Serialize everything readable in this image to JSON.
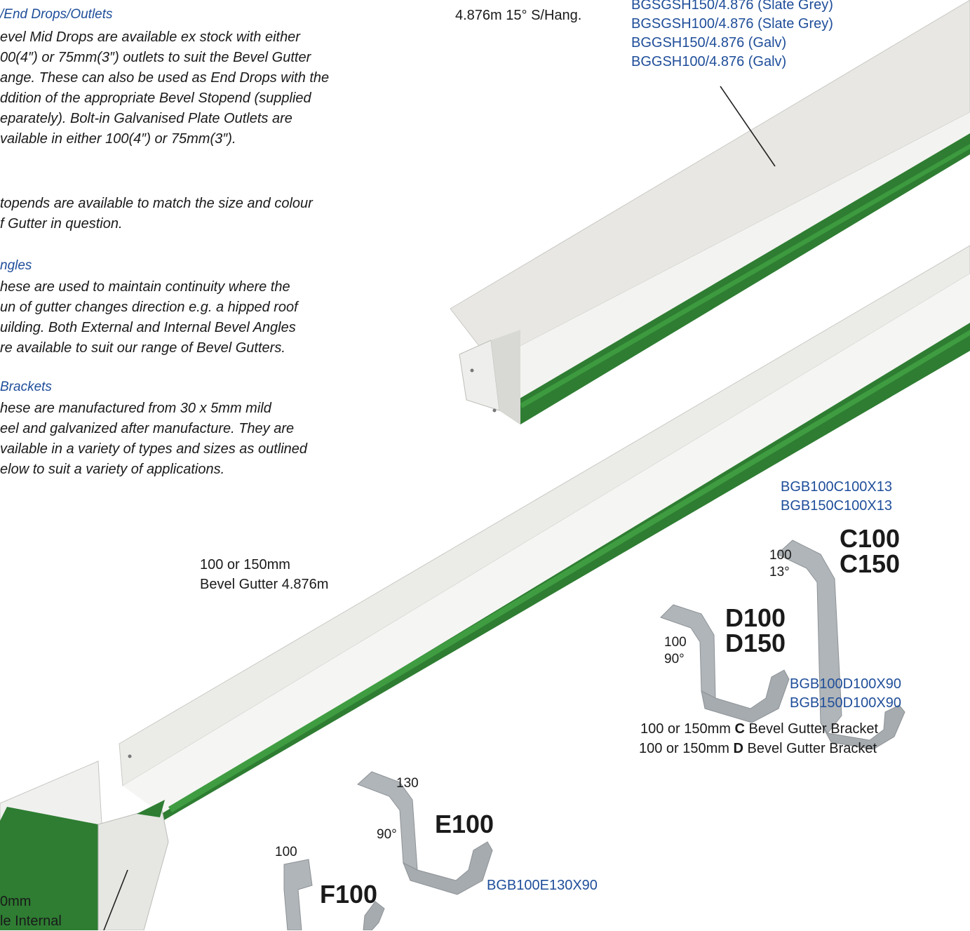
{
  "text": {
    "outlets_heading": "/End Drops/Outlets",
    "outlets_lines": [
      "evel Mid Drops are available ex stock with either",
      "00(4″) or 75mm(3″) outlets to suit the Bevel Gutter",
      "ange. These can also be used as End Drops with the",
      "ddition of the appropriate Bevel Stopend (supplied",
      "eparately). Bolt-in Galvanised Plate Outlets are",
      "vailable in either 100(4″) or 75mm(3″)."
    ],
    "stopends_lines": [
      "topends are available to match the size and colour",
      "f Gutter in question."
    ],
    "angles_heading": "ngles",
    "angles_lines": [
      "hese are used to maintain continuity where the",
      "un of gutter changes direction e.g. a hipped roof",
      "uilding. Both External and Internal Bevel Angles",
      "re available to suit our range of Bevel Gutters."
    ],
    "brackets_heading": "Brackets",
    "brackets_lines": [
      "hese are manufactured from 30 x 5mm mild",
      "eel and galvanized after manufacture. They are",
      "vailable in a variety of types and sizes as outlined",
      "elow to suit a variety of applications."
    ],
    "hang_label": "4.876m 15° S/Hang.",
    "hang_codes": [
      "BGSGSH150/4.876 (Slate Grey)",
      "BGSGSH100/4.876 (Slate Grey)",
      "BGGSH150/4.876 (Galv)",
      "BGGSH100/4.876 (Galv)"
    ],
    "gutter_label": [
      "100 or 150mm",
      "Bevel Gutter 4.876m"
    ],
    "c_codes": [
      "BGB100C100X13",
      "BGB150C100X13"
    ],
    "c_dims": [
      "100",
      "13°"
    ],
    "c_sizes": [
      "C100",
      "C150"
    ],
    "d_dims": [
      "100",
      "90°"
    ],
    "d_sizes": [
      "D100",
      "D150"
    ],
    "d_codes": [
      "BGB100D100X90",
      "BGB150D100X90"
    ],
    "cd_captions": [
      {
        "pre": "100 or 150mm ",
        "letter": "C",
        "post": " Bevel Gutter Bracket"
      },
      {
        "pre": "100 or 150mm ",
        "letter": "D",
        "post": " Bevel Gutter Bracket"
      }
    ],
    "e_dims": [
      "130",
      "90°"
    ],
    "e_size": "E100",
    "e_code": "BGB100E130X90",
    "f_dim": "100",
    "f_size": "F100",
    "angle_label": [
      "0mm",
      "le Internal"
    ]
  },
  "colors": {
    "code_blue": "#1f4e9a",
    "gutter_green": "#2e7d32",
    "gutter_white": "#ececea",
    "bracket_grey": "#a9aeb2"
  }
}
